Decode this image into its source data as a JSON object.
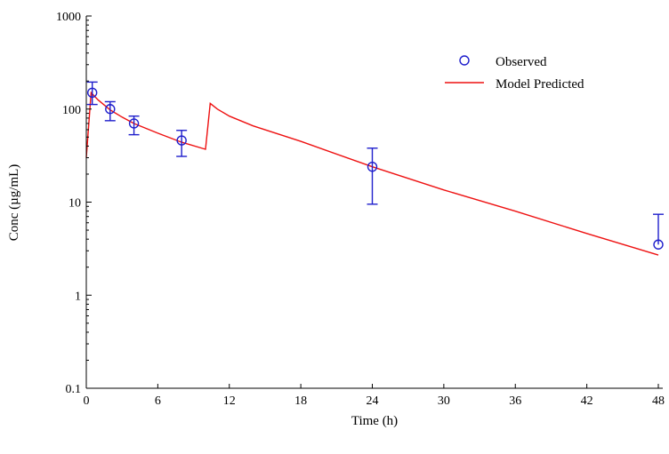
{
  "chart_data": {
    "type": "scatter",
    "title": "",
    "xlabel": "Time (h)",
    "ylabel": "Conc (µg/mL)",
    "x_axis": {
      "min": 0,
      "max": 48,
      "ticks": [
        0,
        6,
        12,
        18,
        24,
        30,
        36,
        42,
        48
      ],
      "tick_labels": [
        "0",
        "6",
        "12",
        "18",
        "24",
        "30",
        "36",
        "42",
        "48"
      ]
    },
    "y_axis": {
      "scale": "log",
      "min": 0.1,
      "max": 1000,
      "ticks": [
        0.1,
        1,
        10,
        100,
        1000
      ],
      "tick_labels": [
        "0.1",
        "1",
        "10",
        "100",
        "1000"
      ]
    },
    "grid": false,
    "legend": {
      "placement": "top-right",
      "entries": [
        "Observed",
        "Model Predicted"
      ]
    },
    "series": [
      {
        "name": "Observed",
        "kind": "points-with-error-bars",
        "color": "#1f1fcc",
        "points": [
          {
            "x": 0.5,
            "y": 150,
            "lower": 112,
            "upper": 195
          },
          {
            "x": 2,
            "y": 100,
            "lower": 75,
            "upper": 120
          },
          {
            "x": 4,
            "y": 70,
            "lower": 53,
            "upper": 84
          },
          {
            "x": 8,
            "y": 46,
            "lower": 31,
            "upper": 59
          },
          {
            "x": 24,
            "y": 24,
            "lower": 9.5,
            "upper": 38
          },
          {
            "x": 48,
            "y": 3.5,
            "lower": 3.5,
            "upper": 7.4
          }
        ]
      },
      {
        "name": "Model Predicted",
        "kind": "line",
        "color": "#ee1111",
        "points": [
          {
            "x": 0,
            "y": 30
          },
          {
            "x": 0.4,
            "y": 150
          },
          {
            "x": 1,
            "y": 125
          },
          {
            "x": 2,
            "y": 98
          },
          {
            "x": 3,
            "y": 82
          },
          {
            "x": 4,
            "y": 70
          },
          {
            "x": 6,
            "y": 55
          },
          {
            "x": 8,
            "y": 44
          },
          {
            "x": 10,
            "y": 37
          },
          {
            "x": 10.4,
            "y": 115
          },
          {
            "x": 11,
            "y": 100
          },
          {
            "x": 12,
            "y": 84
          },
          {
            "x": 14,
            "y": 66
          },
          {
            "x": 18,
            "y": 45
          },
          {
            "x": 24,
            "y": 24
          },
          {
            "x": 30,
            "y": 13.5
          },
          {
            "x": 36,
            "y": 8
          },
          {
            "x": 42,
            "y": 4.6
          },
          {
            "x": 48,
            "y": 2.7
          }
        ]
      }
    ]
  }
}
